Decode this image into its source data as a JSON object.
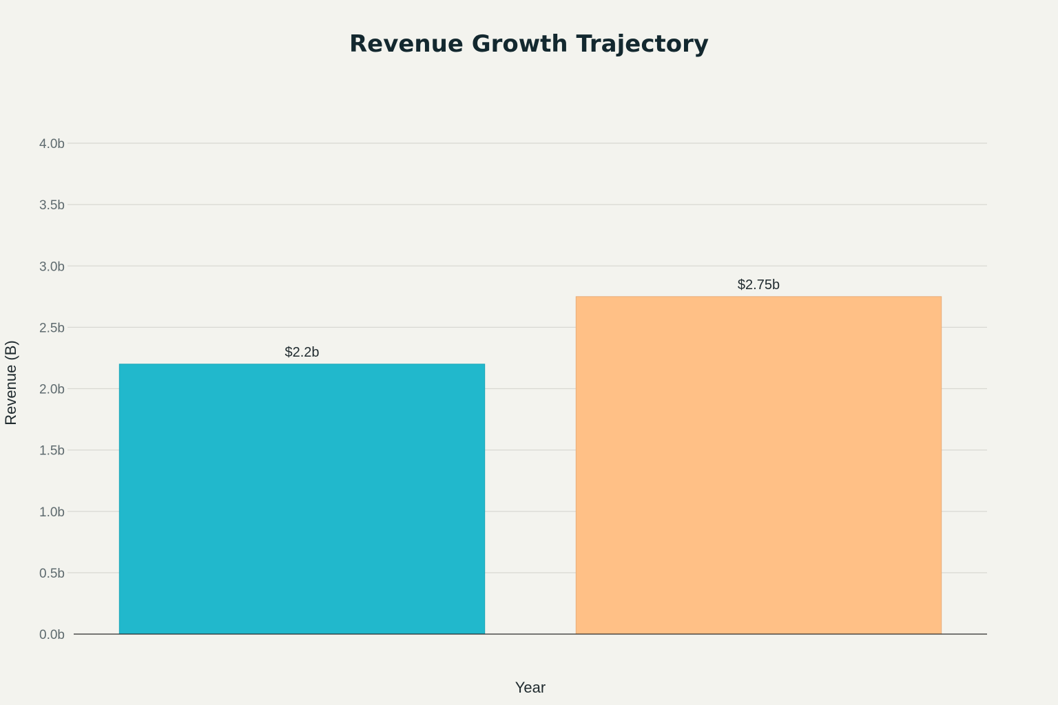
{
  "chart_data": {
    "type": "bar",
    "title": "Revenue Growth Trajectory",
    "xlabel": "Year",
    "ylabel": "Revenue (B)",
    "categories": [
      "",
      ""
    ],
    "values": [
      2.2,
      2.75
    ],
    "data_labels": [
      "$2.2b",
      "$2.75b"
    ],
    "bar_colors": [
      "#21b8cc",
      "#ffc086"
    ],
    "bar_edge_colors": [
      "#1aa5b8",
      "#e8ad7a"
    ],
    "ylim": [
      0,
      4.0
    ],
    "yticks": [
      0,
      0.5,
      1.0,
      1.5,
      2.0,
      2.5,
      3.0,
      3.5,
      4.0
    ],
    "ytick_labels": [
      "0.0b",
      "0.5b",
      "1.0b",
      "1.5b",
      "2.0b",
      "2.5b",
      "3.0b",
      "3.5b",
      "4.0b"
    ],
    "grid": true,
    "legend": "none"
  },
  "colors": {
    "background": "#f3f3ee",
    "title": "#13282f",
    "gridline": "#d8d8d2",
    "tick_text": "#5e6a6e"
  }
}
